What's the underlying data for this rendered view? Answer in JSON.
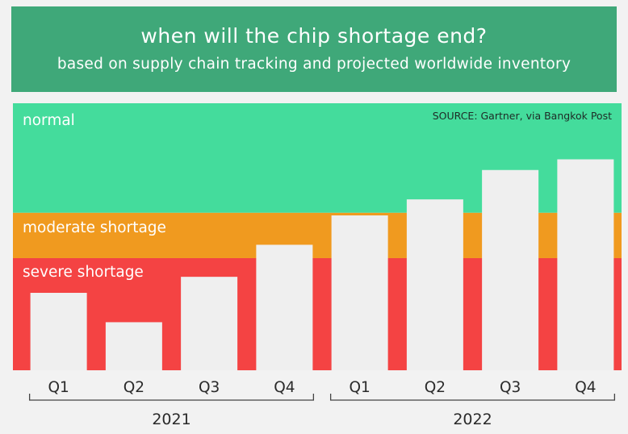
{
  "header": {
    "title": "when will the chip shortage end?",
    "subtitle": "based on supply chain tracking and projected worldwide inventory"
  },
  "source": "SOURCE: Gartner, via Bangkok Post",
  "bands": [
    {
      "label": "severe shortage",
      "color": "#f44343"
    },
    {
      "label": "moderate shortage",
      "color": "#f09a1f"
    },
    {
      "label": "normal",
      "color": "#44dc9c"
    }
  ],
  "colors": {
    "header": "#3fa879",
    "bar": "#efefef",
    "background": "#f2f2f2"
  },
  "chart_data": {
    "type": "bar",
    "categories": [
      "Q1",
      "Q2",
      "Q3",
      "Q4",
      "Q1",
      "Q2",
      "Q3",
      "Q4"
    ],
    "groups": [
      {
        "label": "2021",
        "categories": [
          "Q1",
          "Q2",
          "Q3",
          "Q4"
        ]
      },
      {
        "label": "2022",
        "categories": [
          "Q1",
          "Q2",
          "Q3",
          "Q4"
        ]
      }
    ],
    "values": [
      0.29,
      0.18,
      0.35,
      0.47,
      0.58,
      0.64,
      0.75,
      0.79
    ],
    "band_thresholds": [
      0.42,
      0.59
    ],
    "ylim": [
      0,
      1
    ],
    "title": "when will the chip shortage end?",
    "subtitle": "based on supply chain tracking and projected worldwide inventory",
    "xlabel": "",
    "ylabel": "",
    "y_ticks_shown": false,
    "grid": false
  }
}
